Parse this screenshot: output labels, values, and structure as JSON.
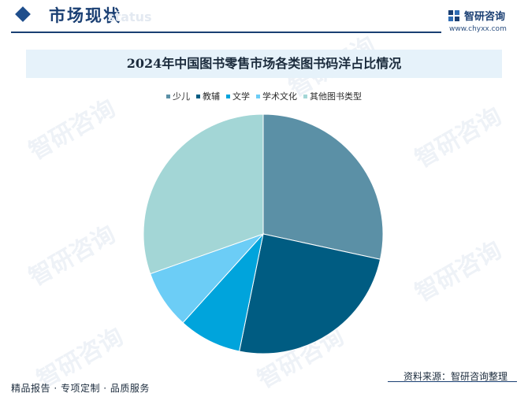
{
  "header": {
    "section_title": "市场现状",
    "watermark_en": "status",
    "brand": "智研咨询",
    "site": "www.chyxx.com"
  },
  "watermark": "智研咨询",
  "footer": {
    "left": "精品报告 · 专项定制 · 品质服务",
    "source": "资料来源：智研咨询整理"
  },
  "chart_data": {
    "type": "pie",
    "title": "2024年中国图书零售市场各类图书码洋占比情况",
    "legend_position": "top",
    "slices": [
      {
        "label": "少儿",
        "value": 28.4,
        "color": "#5b90a6"
      },
      {
        "label": "教辅",
        "value": 24.8,
        "color": "#005c82"
      },
      {
        "label": "文学",
        "value": 8.5,
        "color": "#00a4dc"
      },
      {
        "label": "学术文化",
        "value": 7.9,
        "color": "#6ccdf6"
      },
      {
        "label": "其他图书类型",
        "value": 30.4,
        "color": "#a3d6d6"
      }
    ]
  }
}
